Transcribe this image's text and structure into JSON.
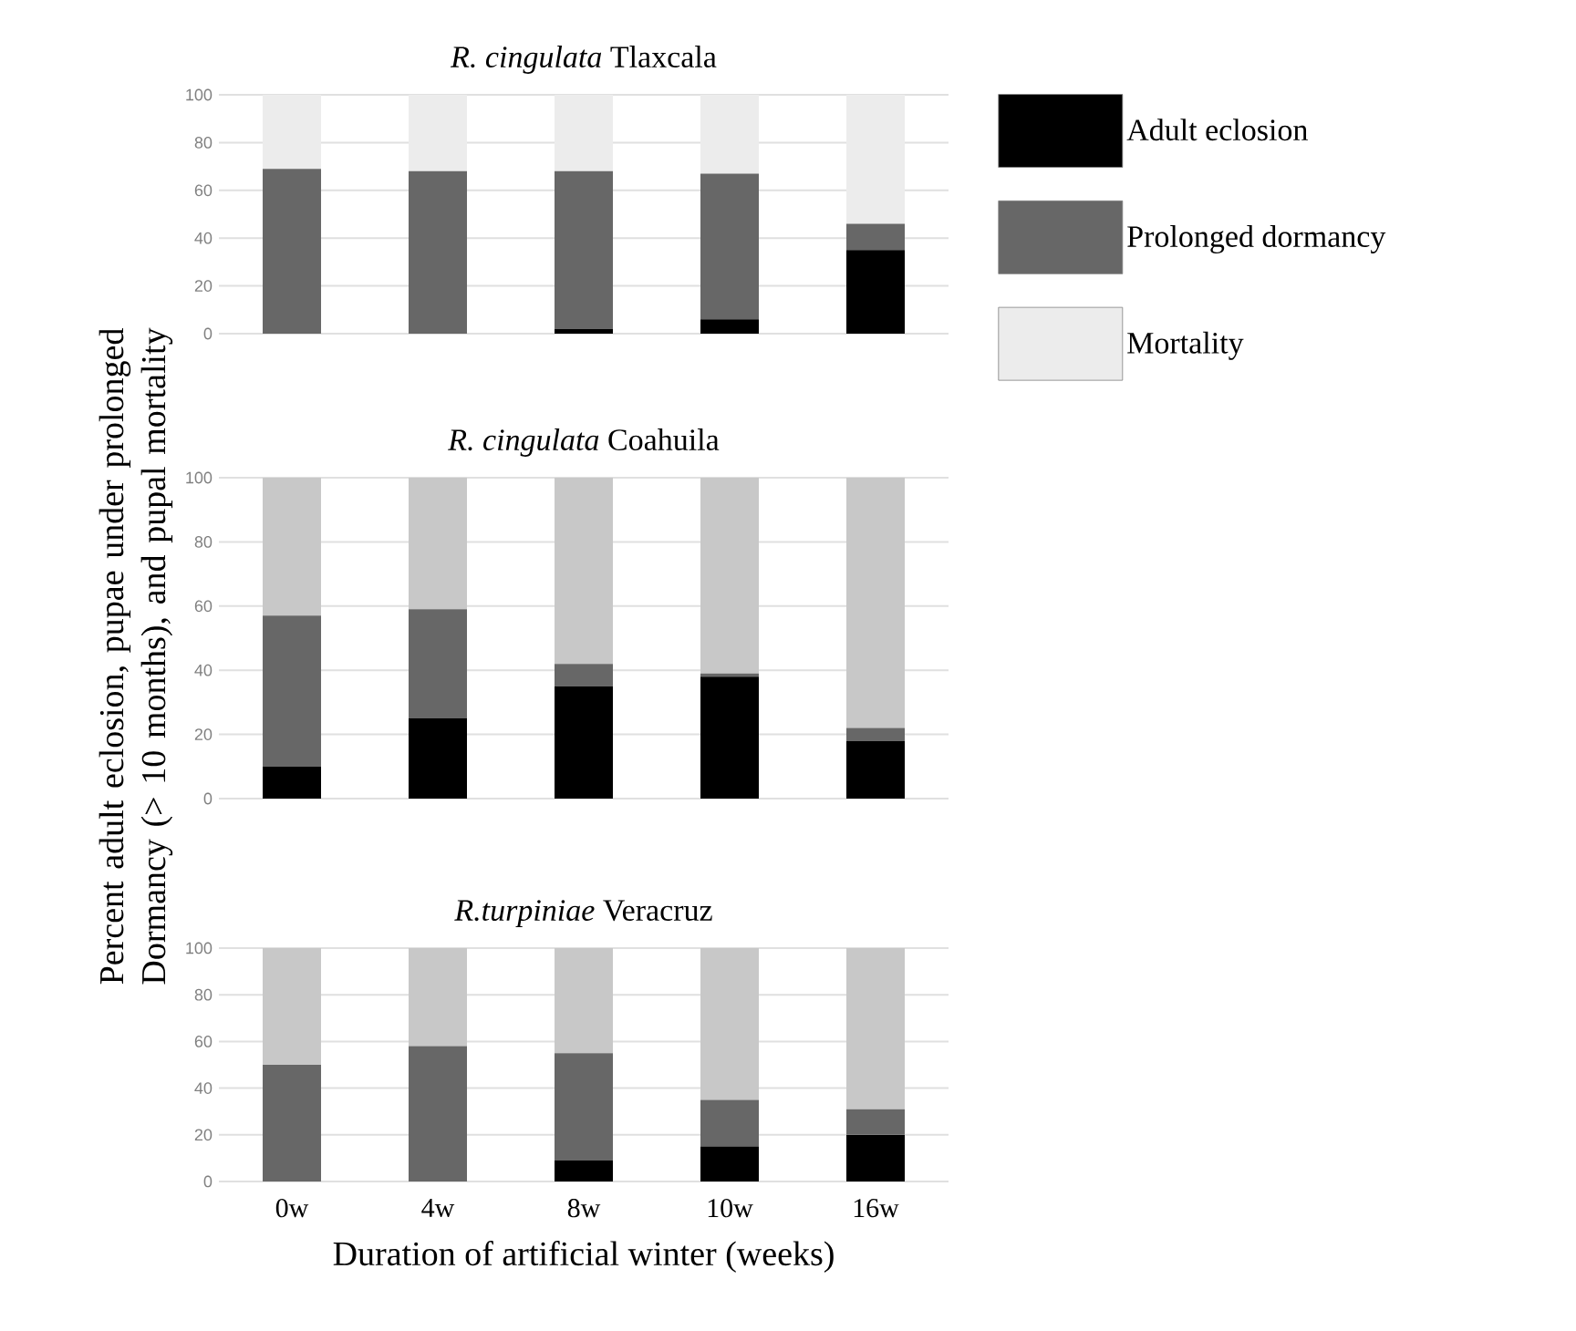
{
  "chart_data": [
    {
      "type": "bar",
      "title": "*R. cingulata* Tlaxcala",
      "categories": [
        null,
        null,
        null,
        null,
        null
      ],
      "stacked": true,
      "ylim": [
        0,
        100
      ],
      "yticks": [
        0,
        20,
        40,
        60,
        80,
        100
      ],
      "grid": "y",
      "legend": "right",
      "tick_labels": "y",
      "series": [
        {
          "name": "Adult eclosion",
          "color": "#000000",
          "values": [
            0,
            0,
            2,
            6,
            35
          ]
        },
        {
          "name": "Prolonged dormancy",
          "color": "#676767",
          "values": [
            69,
            68,
            66,
            61,
            11
          ]
        },
        {
          "name": "Mortality",
          "color": "#ececec",
          "values": [
            31,
            32,
            32,
            33,
            54
          ]
        }
      ]
    },
    {
      "type": "bar",
      "title": "*R. cingulata* Coahuila",
      "ylabel": "Percent adult eclosion, pupae under prolonged Dormancy (> 10 months), and pupal mortality",
      "categories": [
        null,
        null,
        null,
        null,
        null
      ],
      "stacked": true,
      "ylim": [
        0,
        100
      ],
      "yticks": [
        0,
        20,
        40,
        60,
        80,
        100
      ],
      "grid": "y",
      "tick_labels": "y",
      "series": [
        {
          "color": "#000000",
          "values": [
            10,
            25,
            35,
            38,
            18
          ]
        },
        {
          "color": "#676767",
          "values": [
            47,
            34,
            7,
            1,
            4
          ]
        },
        {
          "color": "#c8c8c8",
          "values": [
            43,
            41,
            58,
            61,
            78
          ]
        }
      ]
    },
    {
      "type": "bar",
      "title": "*R.turpiniae* Veracruz",
      "xlabel": "Duration of artificial winter (weeks)",
      "categories": [
        "0w",
        "4w",
        "8w",
        "10w",
        "16w"
      ],
      "stacked": true,
      "ylim": [
        0,
        100
      ],
      "yticks": [
        0,
        20,
        40,
        60,
        80,
        100
      ],
      "grid": "y",
      "series": [
        {
          "color": "#000000",
          "values": [
            0,
            0,
            9,
            15,
            20
          ]
        },
        {
          "color": "#676767",
          "values": [
            50,
            58,
            46,
            20,
            11
          ]
        },
        {
          "color": "#c8c8c8",
          "values": [
            50,
            42,
            45,
            65,
            69
          ]
        }
      ]
    }
  ]
}
